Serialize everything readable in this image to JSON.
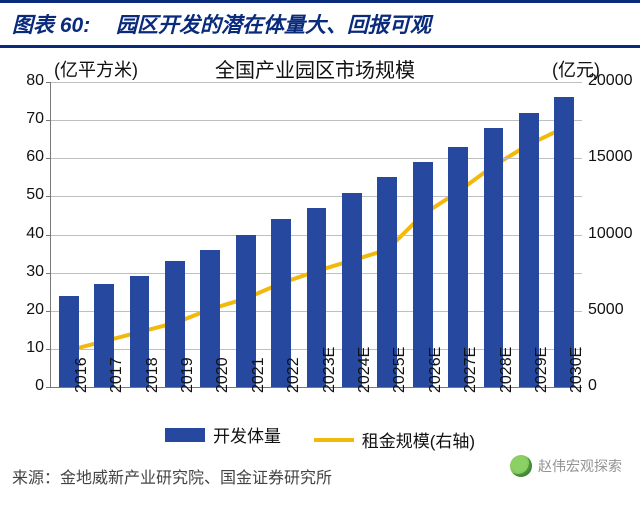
{
  "header": {
    "label_prefix": "图表",
    "number": "60:",
    "title": "园区开发的潜在体量大、回报可观"
  },
  "chart": {
    "type": "bar+line-dual-axis",
    "title": "全国产业园区市场规模",
    "left_axis_label": "(亿平方米)",
    "right_axis_label": "(亿元)",
    "categories": [
      "2016",
      "2017",
      "2018",
      "2019",
      "2020",
      "2021",
      "2022",
      "2023E",
      "2024E",
      "2025E",
      "2026E",
      "2027E",
      "2028E",
      "2029E",
      "2030E"
    ],
    "bar_series": {
      "name": "开发体量",
      "color": "#26489e",
      "values": [
        24,
        27,
        29,
        33,
        36,
        40,
        44,
        47,
        51,
        55,
        59,
        63,
        68,
        72,
        76
      ]
    },
    "line_series": {
      "name": "租金规模(右轴)",
      "color": "#f2b90c",
      "line_width": 4,
      "values": [
        2400,
        3000,
        3600,
        4200,
        5100,
        5800,
        6800,
        7600,
        8300,
        9000,
        11300,
        12800,
        14500,
        15900,
        17000
      ]
    },
    "left_y": {
      "min": 0,
      "max": 80,
      "step": 10
    },
    "right_y": {
      "min": 0,
      "max": 20000,
      "step": 5000
    },
    "bar_width_ratio": 0.56,
    "background_color": "#ffffff",
    "grid_color": "#bfbfbf",
    "axis_color": "#777777",
    "xlabel_rotation": -90,
    "legend_position": "bottom-center",
    "font_family": "Microsoft YaHei",
    "title_fontsize": 20,
    "axis_label_fontsize": 18,
    "tick_fontsize": 16
  },
  "source": {
    "prefix": "来源：",
    "text": "金地威新产业研究院、国金证券研究所"
  },
  "watermark": {
    "text": "赵伟宏观探索",
    "icon": "wechat-icon"
  }
}
